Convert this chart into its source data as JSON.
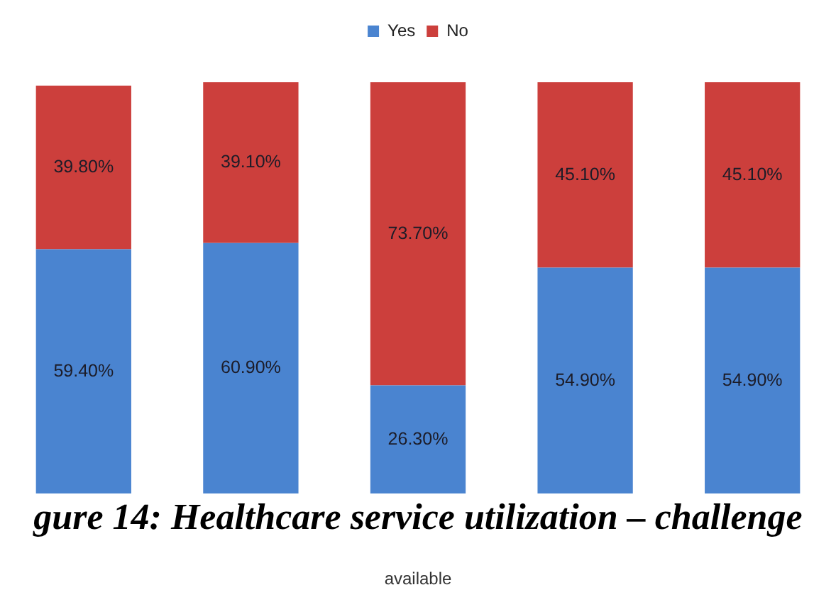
{
  "chart_data": {
    "type": "bar",
    "stacked": true,
    "title": "gure 14: Healthcare service utilization – challenge",
    "categories": [
      null,
      null,
      null,
      null,
      null
    ],
    "series": [
      {
        "name": "Yes",
        "color": "#4a84d0",
        "values": [
          59.4,
          60.9,
          26.3,
          54.9,
          54.9
        ],
        "value_labels": [
          "59.40%",
          "60.90%",
          "26.30%",
          "54.90%",
          "54.90%"
        ]
      },
      {
        "name": "No",
        "color": "#cc3f3c",
        "values": [
          39.8,
          39.1,
          73.7,
          45.1,
          45.1
        ],
        "value_labels": [
          "39.80%",
          "39.10%",
          "73.70%",
          "45.10%",
          "45.10%"
        ]
      }
    ],
    "legend": "top",
    "annotations": [
      "available"
    ]
  }
}
